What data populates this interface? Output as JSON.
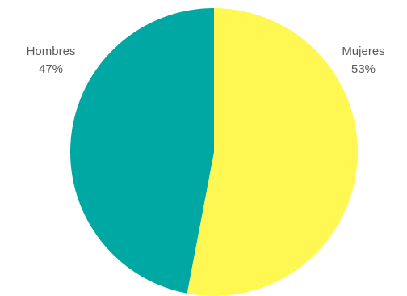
{
  "chart_data": {
    "type": "pie",
    "title": "",
    "start_angle_deg": 0,
    "direction": "clockwise",
    "slices": [
      {
        "label": "Mujeres",
        "value": 53,
        "value_label": "53%",
        "color": "#FFF853"
      },
      {
        "label": "Hombres",
        "value": 47,
        "value_label": "47%",
        "color": "#00A8A3"
      }
    ],
    "legend": "none"
  }
}
